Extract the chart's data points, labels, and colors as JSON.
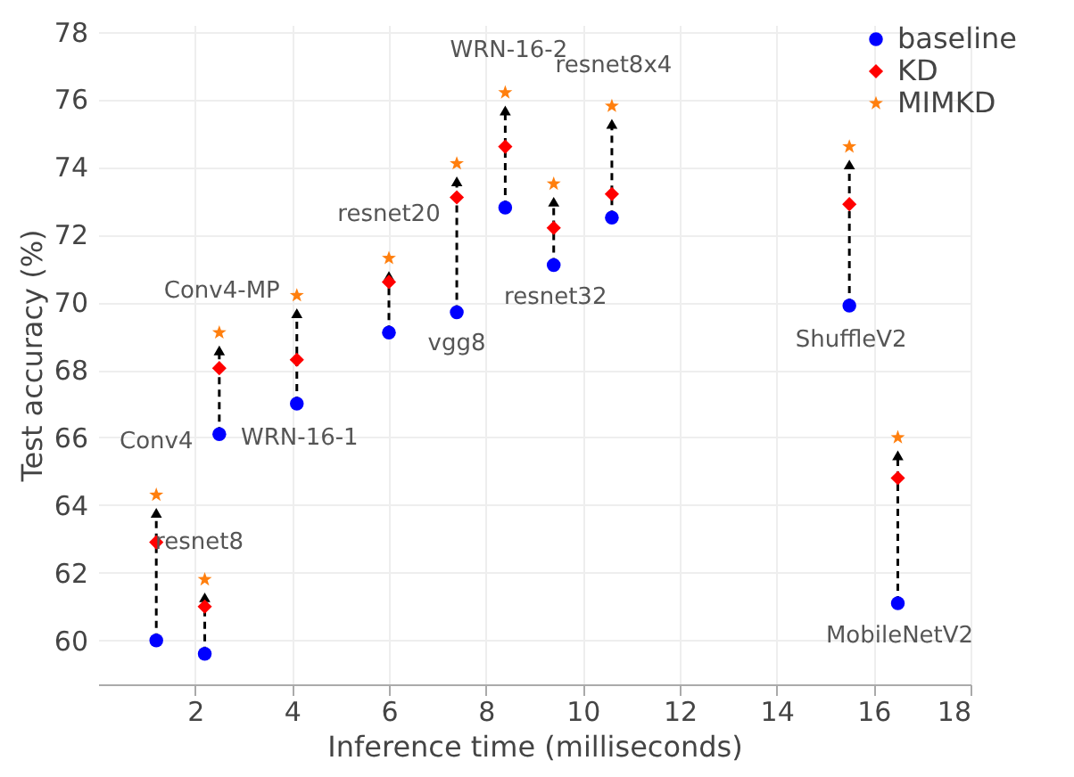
{
  "chart_data": {
    "type": "scatter",
    "xlabel": "Inference time (milliseconds)",
    "ylabel": "Test accuracy (%)",
    "x": [
      1.2,
      2.2,
      2.5,
      4.1,
      6.0,
      7.4,
      8.4,
      9.4,
      10.6,
      15.5,
      16.5
    ],
    "series": [
      {
        "name": "baseline",
        "color": "#0000ff",
        "marker": "circle",
        "values": [
          60.0,
          59.6,
          66.1,
          67.0,
          69.1,
          69.7,
          72.8,
          71.1,
          72.5,
          69.9,
          61.1
        ]
      },
      {
        "name": "KD",
        "color": "#ff0000",
        "marker": "diamond",
        "values": [
          62.9,
          61.0,
          68.05,
          68.3,
          70.6,
          73.1,
          74.6,
          72.2,
          73.2,
          72.9,
          64.8
        ]
      },
      {
        "name": "MIMKD",
        "color": "#ff7f0e",
        "marker": "star",
        "values": [
          64.3,
          61.8,
          69.1,
          70.2,
          71.3,
          74.1,
          76.2,
          73.5,
          75.8,
          74.6,
          66.0
        ]
      }
    ],
    "annotations": [
      {
        "text": "Conv4",
        "x": 1.2,
        "y": 64.3
      },
      {
        "text": "resnet8",
        "x": 2.2,
        "y": 61.8
      },
      {
        "text": "WRN-16-1",
        "x": 2.5,
        "y": 66.1
      },
      {
        "text": "Conv4-MP",
        "x": 4.1,
        "y": 70.2
      },
      {
        "text": "resnet20",
        "x": 6.0,
        "y": 71.3
      },
      {
        "text": "vgg8",
        "x": 7.4,
        "y": 69.7
      },
      {
        "text": "WRN-16-2",
        "x": 8.4,
        "y": 76.2
      },
      {
        "text": "resnet32",
        "x": 9.4,
        "y": 71.1
      },
      {
        "text": "resnet8x4",
        "x": 10.6,
        "y": 75.8
      },
      {
        "text": "ShuffleV2",
        "x": 15.5,
        "y": 69.9
      },
      {
        "text": "MobileNetV2",
        "x": 16.5,
        "y": 61.1
      }
    ],
    "xlim": [
      0,
      18
    ],
    "xticks": [
      2,
      4,
      6,
      8,
      10,
      12,
      14,
      16,
      18
    ],
    "ylim": [
      58.7,
      78.2
    ],
    "yticks": [
      60,
      62,
      64,
      66,
      68,
      70,
      72,
      74,
      76,
      78
    ],
    "grid": true,
    "legend": "top right"
  }
}
